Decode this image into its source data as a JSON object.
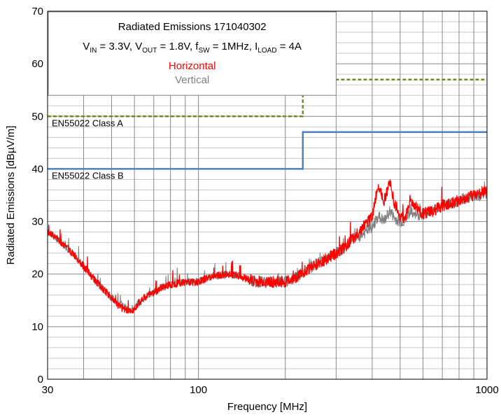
{
  "chart_data": {
    "type": "line",
    "title": "Radiated Emissions 171040302",
    "subtitle_parts": {
      "vin": "V",
      "vin_sub": "IN",
      "vin_val": " = 3.3V, V",
      "vout_sub": "OUT",
      "vout_val": " = 1.8V, f",
      "fsw_sub": "SW",
      "fsw_val": " = 1MHz, I",
      "iload_sub": "LOAD",
      "iload_val": " = 4A"
    },
    "xlabel": "Frequency [MHz]",
    "ylabel": "Radiated Emissions [dBµV/m]",
    "xscale": "log",
    "xlim": [
      30,
      1000
    ],
    "ylim": [
      0,
      70
    ],
    "grid": true,
    "x_tick_labels": [
      "30",
      "100",
      "1000"
    ],
    "x_tick_values": [
      30,
      100,
      1000
    ],
    "y_tick_labels": [
      "0",
      "10",
      "20",
      "30",
      "40",
      "50",
      "60",
      "70"
    ],
    "y_tick_values": [
      0,
      10,
      20,
      30,
      40,
      50,
      60,
      70
    ],
    "legend_placement": "top-left",
    "limits": [
      {
        "name": "EN55022 Class A",
        "style": "dashed",
        "color": "#6b8e23",
        "points": [
          [
            30,
            50
          ],
          [
            230,
            50
          ],
          [
            230,
            57
          ],
          [
            1000,
            57
          ]
        ]
      },
      {
        "name": "EN55022 Class B",
        "style": "solid",
        "color": "#4f81bd",
        "points": [
          [
            30,
            40
          ],
          [
            230,
            40
          ],
          [
            230,
            47
          ],
          [
            1000,
            47
          ]
        ]
      }
    ],
    "series": [
      {
        "name": "Horizontal",
        "color": "#ff0000",
        "x": [
          30,
          32,
          35,
          38,
          42,
          46,
          50,
          53,
          56,
          58,
          60,
          62,
          65,
          70,
          75,
          80,
          90,
          100,
          110,
          120,
          130,
          140,
          150,
          160,
          180,
          200,
          220,
          240,
          260,
          280,
          300,
          320,
          340,
          360,
          380,
          400,
          420,
          440,
          460,
          480,
          500,
          520,
          540,
          560,
          600,
          650,
          700,
          750,
          800,
          850,
          900,
          950,
          1000
        ],
        "y": [
          28,
          27,
          25,
          23,
          20,
          17.5,
          15.5,
          14,
          13,
          12.8,
          13.5,
          14.5,
          15.5,
          16.5,
          17.5,
          18,
          18.5,
          18.5,
          19.5,
          19.8,
          20,
          19.5,
          19,
          18.5,
          18.5,
          18.5,
          19.5,
          21,
          22,
          23,
          24,
          25,
          26.5,
          28,
          29.5,
          31,
          37,
          34,
          37.5,
          33,
          31,
          30.5,
          34,
          33,
          31.5,
          32,
          33,
          33.5,
          34,
          34.5,
          35,
          35.5,
          36
        ]
      },
      {
        "name": "Vertical",
        "color": "#808080",
        "x": [
          30,
          32,
          35,
          38,
          42,
          46,
          50,
          53,
          56,
          58,
          60,
          62,
          65,
          70,
          75,
          80,
          90,
          100,
          110,
          120,
          130,
          140,
          150,
          160,
          180,
          200,
          220,
          240,
          260,
          280,
          300,
          320,
          340,
          360,
          380,
          400,
          420,
          440,
          460,
          480,
          500,
          520,
          540,
          560,
          600,
          650,
          700,
          750,
          800,
          850,
          900,
          950,
          1000
        ],
        "y": [
          28,
          27,
          25,
          23,
          20,
          17.5,
          15.5,
          14.5,
          13.5,
          13.2,
          13.5,
          14.5,
          15.5,
          16.5,
          17.5,
          18,
          18.5,
          18.5,
          19.5,
          19.8,
          20,
          19.5,
          19,
          18.5,
          18.5,
          18.5,
          19.5,
          21,
          22,
          23,
          24,
          25,
          26.5,
          27,
          28,
          29,
          31,
          30,
          32,
          30.5,
          30,
          30,
          32,
          31,
          31.5,
          32,
          33,
          33.5,
          34,
          34.5,
          35,
          35,
          35.5
        ]
      }
    ]
  }
}
